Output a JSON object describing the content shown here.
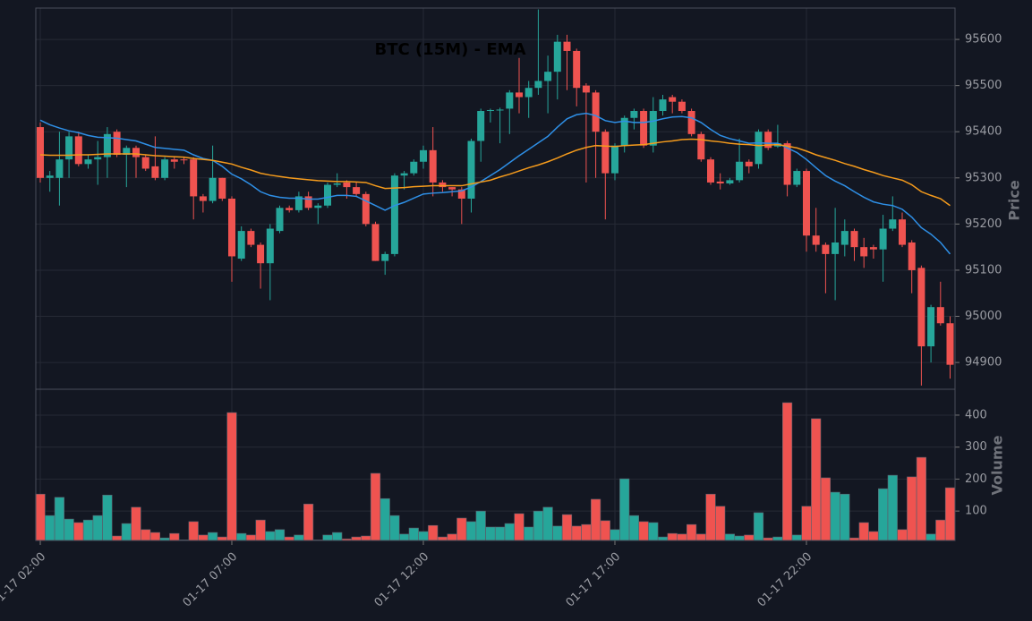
{
  "chart_data": {
    "type": "candlestick",
    "title": "BTC (15M) - EMA",
    "ylabel": "Price",
    "volume_label": "Volume",
    "categories": [
      "01-17 02:00",
      null,
      null,
      null,
      null,
      null,
      null,
      null,
      null,
      null,
      null,
      null,
      null,
      null,
      null,
      null,
      null,
      null,
      null,
      null,
      "01-17 07:00",
      null,
      null,
      null,
      null,
      null,
      null,
      null,
      null,
      null,
      null,
      null,
      null,
      null,
      null,
      null,
      null,
      null,
      null,
      null,
      "01-17 12:00",
      null,
      null,
      null,
      null,
      null,
      null,
      null,
      null,
      null,
      null,
      null,
      null,
      null,
      null,
      null,
      null,
      null,
      null,
      null,
      "01-17 17:00",
      null,
      null,
      null,
      null,
      null,
      null,
      null,
      null,
      null,
      null,
      null,
      null,
      null,
      null,
      null,
      null,
      null,
      null,
      null,
      "01-17 22:00",
      null,
      null,
      null,
      null,
      null,
      null,
      null,
      null,
      null,
      null,
      null,
      null,
      null,
      null,
      null
    ],
    "open": [
      95410,
      95300,
      95300,
      95340,
      95390,
      95330,
      95340,
      95345,
      95400,
      95350,
      95365,
      95345,
      95325,
      95300,
      95340,
      95340,
      95340,
      95260,
      95250,
      95300,
      95255,
      95125,
      95185,
      95155,
      95115,
      95185,
      95235,
      95230,
      95260,
      95235,
      95240,
      95285,
      95290,
      95280,
      95265,
      95200,
      95120,
      95135,
      95305,
      95310,
      95335,
      95360,
      95290,
      95280,
      95275,
      95255,
      95380,
      95445,
      95447,
      95450,
      95485,
      95475,
      95495,
      95510,
      95530,
      95595,
      95575,
      95500,
      95485,
      95400,
      95310,
      95370,
      95430,
      95445,
      95370,
      95445,
      95475,
      95465,
      95445,
      95395,
      95340,
      95292,
      95288,
      95295,
      95335,
      95330,
      95400,
      95368,
      95375,
      95285,
      95315,
      95175,
      95155,
      95135,
      95155,
      95185,
      95150,
      95150,
      95145,
      95190,
      95210,
      95160,
      95105,
      94935,
      95020,
      94985
    ],
    "high": [
      95420,
      95315,
      95400,
      95400,
      95400,
      95350,
      95380,
      95410,
      95405,
      95370,
      95370,
      95350,
      95390,
      95345,
      95345,
      95345,
      95345,
      95265,
      95370,
      95300,
      95260,
      95195,
      95190,
      95160,
      95200,
      95240,
      95240,
      95270,
      95270,
      95245,
      95290,
      95310,
      95295,
      95290,
      95270,
      95205,
      95140,
      95310,
      95315,
      95340,
      95370,
      95410,
      95295,
      95280,
      95280,
      95385,
      95450,
      95450,
      95452,
      95490,
      95560,
      95510,
      95665,
      95565,
      95610,
      95610,
      95580,
      95505,
      95490,
      95405,
      95375,
      95435,
      95450,
      95450,
      95475,
      95480,
      95480,
      95470,
      95450,
      95400,
      95345,
      95310,
      95300,
      95385,
      95340,
      95405,
      95405,
      95415,
      95380,
      95320,
      95320,
      95235,
      95160,
      95235,
      95210,
      95190,
      95170,
      95155,
      95220,
      95260,
      95225,
      95165,
      95110,
      95025,
      95075,
      95000
    ],
    "low": [
      95290,
      95270,
      95240,
      95300,
      95325,
      95320,
      95285,
      95300,
      95345,
      95280,
      95300,
      95315,
      95295,
      95295,
      95320,
      95330,
      95210,
      95225,
      95245,
      95250,
      95075,
      95120,
      95150,
      95060,
      95035,
      95180,
      95225,
      95225,
      95230,
      95200,
      95235,
      95280,
      95255,
      95260,
      95195,
      95120,
      95090,
      95130,
      95275,
      95305,
      95320,
      95260,
      95270,
      95260,
      95200,
      95225,
      95335,
      95420,
      95375,
      95395,
      95440,
      95430,
      95480,
      95440,
      95470,
      95490,
      95455,
      95290,
      95300,
      95210,
      95295,
      95355,
      95405,
      95365,
      95355,
      95435,
      95440,
      95440,
      95390,
      95335,
      95285,
      95275,
      95285,
      95290,
      95310,
      95320,
      95360,
      95365,
      95260,
      95280,
      95140,
      95140,
      95050,
      95035,
      95130,
      95120,
      95105,
      95125,
      95075,
      95185,
      95150,
      95050,
      94850,
      94900,
      94980,
      94865
    ],
    "close": [
      95300,
      95305,
      95340,
      95390,
      95330,
      95340,
      95345,
      95395,
      95350,
      95365,
      95345,
      95320,
      95300,
      95340,
      95335,
      95338,
      95260,
      95250,
      95300,
      95255,
      95130,
      95185,
      95155,
      95115,
      95190,
      95235,
      95230,
      95260,
      95235,
      95240,
      95285,
      95288,
      95280,
      95265,
      95200,
      95120,
      95135,
      95305,
      95310,
      95335,
      95360,
      95290,
      95280,
      95275,
      95255,
      95380,
      95445,
      95447,
      95448,
      95485,
      95475,
      95495,
      95510,
      95530,
      95595,
      95575,
      95495,
      95485,
      95400,
      95310,
      95370,
      95430,
      95445,
      95370,
      95445,
      95470,
      95465,
      95445,
      95395,
      95340,
      95290,
      95288,
      95295,
      95335,
      95325,
      95400,
      95365,
      95375,
      95285,
      95315,
      95175,
      95155,
      95135,
      95160,
      95185,
      95150,
      95130,
      95145,
      95190,
      95210,
      95155,
      95100,
      94935,
      95020,
      94985,
      94895
    ],
    "volume": [
      153,
      86,
      143,
      75,
      64,
      72,
      86,
      150,
      22,
      61,
      112,
      42,
      33,
      16,
      30,
      10,
      67,
      25,
      33,
      19,
      408,
      30,
      25,
      72,
      36,
      42,
      19,
      25,
      122,
      10,
      25,
      33,
      13,
      19,
      22,
      218,
      139,
      86,
      28,
      47,
      36,
      55,
      19,
      28,
      78,
      67,
      100,
      50,
      50,
      61,
      92,
      50,
      100,
      112,
      53,
      89,
      53,
      58,
      137,
      70,
      42,
      201,
      86,
      67,
      64,
      19,
      30,
      28,
      58,
      28,
      153,
      115,
      28,
      22,
      25,
      95,
      16,
      19,
      439,
      25,
      115,
      389,
      204,
      159,
      153,
      16,
      64,
      36,
      170,
      212,
      42,
      207,
      268,
      28,
      72,
      173
    ],
    "ema": [
      {
        "color": "#2e8fe6",
        "values": [
          95425,
          95415,
          95408,
          95402,
          95398,
          95392,
          95388,
          95387,
          95386,
          95383,
          95380,
          95373,
          95366,
          95364,
          95362,
          95360,
          95350,
          95342,
          95338,
          95325,
          95308,
          95298,
          95285,
          95270,
          95262,
          95258,
          95256,
          95256,
          95254,
          95254,
          95258,
          95262,
          95262,
          95260,
          95250,
          95240,
          95230,
          95240,
          95247,
          95256,
          95265,
          95267,
          95268,
          95270,
          95272,
          95280,
          95292,
          95305,
          95318,
          95333,
          95348,
          95362,
          95376,
          95390,
          95410,
          95428,
          95437,
          95440,
          95435,
          95424,
          95420,
          95423,
          95420,
          95420,
          95423,
          95428,
          95432,
          95433,
          95430,
          95420,
          95405,
          95392,
          95385,
          95380,
          95375,
          95376,
          95375,
          95375,
          95365,
          95355,
          95340,
          95322,
          95305,
          95293,
          95283,
          95270,
          95258,
          95248,
          95243,
          95240,
          95232,
          95215,
          95192,
          95178,
          95160,
          95135
        ]
      },
      {
        "color": "#f59b1c",
        "values": [
          95350,
          95349,
          95349,
          95349,
          95350,
          95350,
          95351,
          95352,
          95352,
          95352,
          95352,
          95350,
          95348,
          95347,
          95346,
          95345,
          95342,
          95340,
          95338,
          95334,
          95330,
          95323,
          95317,
          95310,
          95306,
          95303,
          95300,
          95298,
          95296,
          95294,
          95293,
          95292,
          95292,
          95291,
          95290,
          95283,
          95277,
          95278,
          95279,
          95281,
          95282,
          95283,
          95283,
          95283,
          95283,
          95287,
          95291,
          95295,
          95302,
          95308,
          95315,
          95322,
          95328,
          95335,
          95343,
          95352,
          95360,
          95366,
          95370,
          95369,
          95368,
          95370,
          95371,
          95372,
          95375,
          95378,
          95380,
          95383,
          95384,
          95383,
          95380,
          95378,
          95375,
          95373,
          95372,
          95370,
          95371,
          95372,
          95369,
          95365,
          95358,
          95350,
          95344,
          95338,
          95331,
          95325,
          95318,
          95312,
          95305,
          95300,
          95295,
          95285,
          95270,
          95262,
          95255,
          95240
        ]
      }
    ],
    "ylim": [
      94842,
      95668
    ],
    "yticks": [
      94900,
      95000,
      95100,
      95200,
      95300,
      95400,
      95500,
      95600
    ],
    "volume_ylim": [
      8,
      481
    ],
    "volume_yticks": [
      100,
      200,
      300,
      400
    ],
    "up_color": "#26a69a",
    "down_color": "#ef5350",
    "grid": true
  }
}
